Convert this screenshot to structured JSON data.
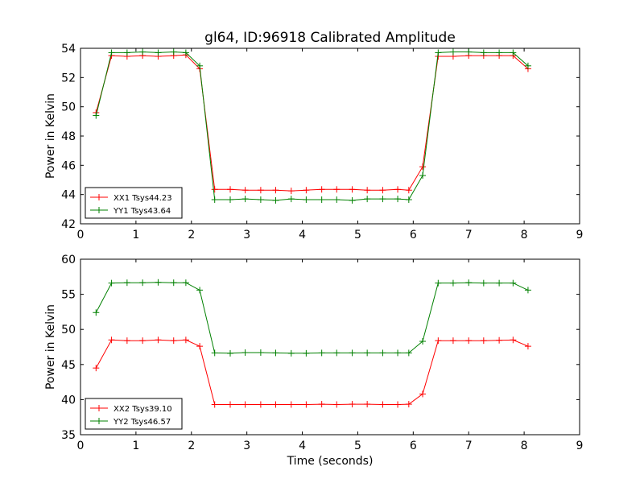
{
  "chart_data": {
    "type": "line",
    "title": "gl64, ID:96918 Calibrated Amplitude",
    "xlabel": "Time (seconds)",
    "subplots": [
      {
        "ylabel": "Power in Kelvin",
        "xlim": [
          0,
          9
        ],
        "ylim": [
          42,
          54
        ],
        "xticks": [
          "0",
          "1",
          "2",
          "3",
          "4",
          "5",
          "6",
          "7",
          "8",
          "9"
        ],
        "yticks": [
          "42",
          "44",
          "46",
          "48",
          "50",
          "52",
          "54"
        ],
        "legend_position": "lower-left",
        "series": [
          {
            "name": "XX1 Tsys44.23",
            "color": "#ff0000",
            "x": [
              0.28,
              0.56,
              0.84,
              1.12,
              1.4,
              1.68,
              1.9,
              2.15,
              2.42,
              2.7,
              2.97,
              3.25,
              3.52,
              3.8,
              4.07,
              4.35,
              4.62,
              4.9,
              5.17,
              5.45,
              5.72,
              5.92,
              6.17,
              6.45,
              6.72,
              7.0,
              7.27,
              7.55,
              7.8,
              8.07
            ],
            "y": [
              49.6,
              53.5,
              53.45,
              53.5,
              53.45,
              53.5,
              53.55,
              52.6,
              44.35,
              44.35,
              44.3,
              44.3,
              44.3,
              44.25,
              44.3,
              44.35,
              44.35,
              44.35,
              44.3,
              44.3,
              44.35,
              44.3,
              45.9,
              53.45,
              53.45,
              53.5,
              53.5,
              53.5,
              53.5,
              52.6
            ]
          },
          {
            "name": "YY1 Tsys43.64",
            "color": "#008000",
            "x": [
              0.28,
              0.56,
              0.84,
              1.12,
              1.4,
              1.68,
              1.9,
              2.15,
              2.42,
              2.7,
              2.97,
              3.25,
              3.52,
              3.8,
              4.07,
              4.35,
              4.62,
              4.9,
              5.17,
              5.45,
              5.72,
              5.92,
              6.17,
              6.45,
              6.72,
              7.0,
              7.27,
              7.55,
              7.8,
              8.07
            ],
            "y": [
              49.4,
              53.7,
              53.7,
              53.75,
              53.7,
              53.75,
              53.7,
              52.8,
              43.65,
              43.65,
              43.7,
              43.65,
              43.6,
              43.7,
              43.65,
              43.65,
              43.65,
              43.6,
              43.7,
              43.7,
              43.7,
              43.65,
              45.3,
              53.7,
              53.75,
              53.75,
              53.7,
              53.7,
              53.7,
              52.8
            ]
          }
        ]
      },
      {
        "ylabel": "Power in Kelvin",
        "xlim": [
          0,
          9
        ],
        "ylim": [
          35,
          60
        ],
        "xticks": [
          "0",
          "1",
          "2",
          "3",
          "4",
          "5",
          "6",
          "7",
          "8",
          "9"
        ],
        "yticks": [
          "35",
          "40",
          "45",
          "50",
          "55",
          "60"
        ],
        "legend_position": "lower-left",
        "series": [
          {
            "name": "XX2 Tsys39.10",
            "color": "#ff0000",
            "x": [
              0.28,
              0.56,
              0.84,
              1.12,
              1.4,
              1.68,
              1.9,
              2.15,
              2.42,
              2.7,
              2.97,
              3.25,
              3.52,
              3.8,
              4.07,
              4.35,
              4.62,
              4.9,
              5.17,
              5.45,
              5.72,
              5.92,
              6.17,
              6.45,
              6.72,
              7.0,
              7.27,
              7.55,
              7.8,
              8.07
            ],
            "y": [
              44.5,
              48.5,
              48.4,
              48.4,
              48.5,
              48.4,
              48.5,
              47.6,
              39.3,
              39.3,
              39.3,
              39.3,
              39.3,
              39.3,
              39.3,
              39.35,
              39.3,
              39.35,
              39.35,
              39.3,
              39.3,
              39.35,
              40.8,
              48.4,
              48.4,
              48.4,
              48.4,
              48.45,
              48.5,
              47.6
            ]
          },
          {
            "name": "YY2 Tsys46.57",
            "color": "#008000",
            "x": [
              0.28,
              0.56,
              0.84,
              1.12,
              1.4,
              1.68,
              1.9,
              2.15,
              2.42,
              2.7,
              2.97,
              3.25,
              3.52,
              3.8,
              4.07,
              4.35,
              4.62,
              4.9,
              5.17,
              5.45,
              5.72,
              5.92,
              6.17,
              6.45,
              6.72,
              7.0,
              7.27,
              7.55,
              7.8,
              8.07
            ],
            "y": [
              52.4,
              56.6,
              56.65,
              56.65,
              56.7,
              56.65,
              56.65,
              55.6,
              46.65,
              46.6,
              46.7,
              46.7,
              46.65,
              46.6,
              46.6,
              46.65,
              46.65,
              46.65,
              46.65,
              46.65,
              46.65,
              46.65,
              48.3,
              56.6,
              56.6,
              56.65,
              56.6,
              56.6,
              56.6,
              55.6
            ]
          }
        ]
      }
    ]
  }
}
